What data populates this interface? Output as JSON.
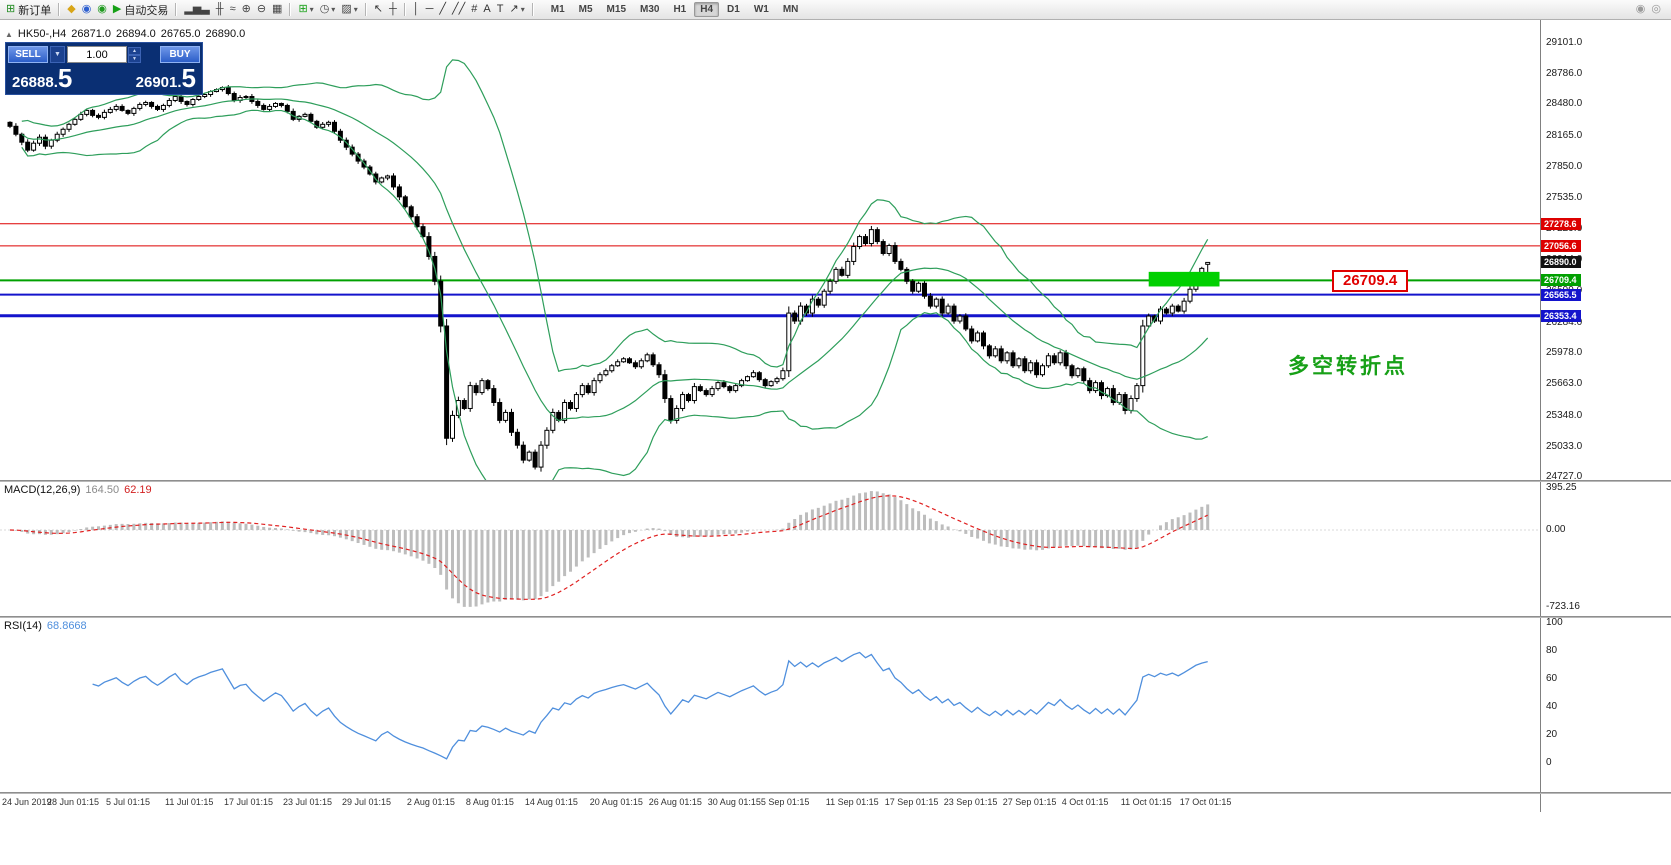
{
  "toolbar": {
    "items": [
      {
        "name": "new-order-icon",
        "glyph": "⊞",
        "color": "#1f8a1f",
        "label": "新订单"
      },
      {
        "sep": true
      },
      {
        "name": "market-watch-icon",
        "glyph": "◆",
        "color": "#d8a517"
      },
      {
        "name": "navigator-icon",
        "glyph": "◉",
        "color": "#2d5fd0"
      },
      {
        "name": "terminal-icon",
        "glyph": "◉",
        "color": "#1f9a1f"
      },
      {
        "name": "autotrading-icon",
        "glyph": "▶",
        "color": "#16a016",
        "label": "自动交易"
      },
      {
        "sep": true
      },
      {
        "name": "bar-chart-icon",
        "glyph": "▂▅▃",
        "color": "#444444"
      },
      {
        "name": "candlestick-chart-icon",
        "glyph": "╫",
        "color": "#444444"
      },
      {
        "name": "line-chart-icon",
        "glyph": "≈",
        "color": "#444444"
      },
      {
        "name": "zoom-in-icon",
        "glyph": "⊕",
        "color": "#444444"
      },
      {
        "name": "zoom-out-icon",
        "glyph": "⊖",
        "color": "#444444"
      },
      {
        "name": "tile-windows-icon",
        "glyph": "▦",
        "color": "#444444"
      },
      {
        "sep": true
      },
      {
        "name": "indicators-icon",
        "glyph": "⊞",
        "color": "#16a016",
        "caret": true
      },
      {
        "name": "periods-icon",
        "glyph": "◷",
        "color": "#444444",
        "caret": true
      },
      {
        "name": "templates-icon",
        "glyph": "▨",
        "color": "#444444",
        "caret": true
      },
      {
        "sep": true
      },
      {
        "name": "cursor-icon",
        "glyph": "↖",
        "color": "#333333"
      },
      {
        "name": "crosshair-icon",
        "glyph": "┼",
        "color": "#333333"
      },
      {
        "sep": true
      },
      {
        "name": "vertical-line-icon",
        "glyph": "│",
        "color": "#333333"
      },
      {
        "name": "horizontal-line-icon",
        "glyph": "─",
        "color": "#333333"
      },
      {
        "name": "trendline-icon",
        "glyph": "╱",
        "color": "#333333"
      },
      {
        "name": "channel-icon",
        "glyph": "╱╱",
        "color": "#333333"
      },
      {
        "name": "fibonacci-icon",
        "glyph": "#",
        "color": "#333333"
      },
      {
        "name": "text-icon",
        "glyph": "A",
        "color": "#333333"
      },
      {
        "name": "label-icon",
        "glyph": "T",
        "color": "#333333"
      },
      {
        "name": "arrows-icon",
        "glyph": "↗",
        "color": "#333333",
        "caret": true
      },
      {
        "sep": true
      }
    ],
    "timeframes": [
      "M1",
      "M5",
      "M15",
      "M30",
      "H1",
      "H4",
      "D1",
      "W1",
      "MN"
    ],
    "active_timeframe": "H4",
    "right_icons": [
      {
        "name": "community-icon",
        "glyph": "◉",
        "color": "#9a9a9a"
      },
      {
        "name": "search-icon",
        "glyph": "◎",
        "color": "#9a9a9a"
      }
    ]
  },
  "chart_info": {
    "symbol_period": "HK50-,H4",
    "open": "26871.0",
    "high": "26894.0",
    "low": "26765.0",
    "close": "26890.0"
  },
  "one_click": {
    "sell_label": "SELL",
    "buy_label": "BUY",
    "lot_size": "1.00",
    "sell_price_int": "26888.",
    "sell_price_dec": "5",
    "buy_price_int": "26901.",
    "buy_price_dec": "5"
  },
  "chart_data": {
    "type": "candlestick",
    "title": "HK50-,H4",
    "ylim": [
      24700,
      29330
    ],
    "y_ticks": [
      "29101.0",
      "28786.0",
      "28480.0",
      "28165.0",
      "27850.0",
      "27535.0",
      "27229.0",
      "26914.0",
      "26599.0",
      "26284.0",
      "25978.0",
      "25663.0",
      "25348.0",
      "25033.0",
      "24727.0"
    ],
    "current_price": {
      "value": "26890.0",
      "color": "#111111"
    },
    "levels": [
      {
        "price": "27278.6",
        "color": "#dd0000",
        "width": 1
      },
      {
        "price": "27056.6",
        "color": "#dd0000",
        "width": 1
      },
      {
        "price": "26709.4",
        "color": "#00a000",
        "width": 2
      },
      {
        "price": "26565.5",
        "color": "#1414cc",
        "width": 2
      },
      {
        "price": "26353.4",
        "color": "#1414cc",
        "width": 3
      }
    ],
    "bollinger": {
      "period": 20,
      "deviation": 2,
      "color": "#2e9e5b"
    },
    "candle_colors": {
      "up": "#ffffff",
      "down": "#000000",
      "outline": "#000000"
    },
    "candles": {
      "first_open": 28300,
      "closes": [
        28260,
        28180,
        28100,
        28020,
        28090,
        28150,
        28060,
        28120,
        28180,
        28230,
        28280,
        28330,
        28380,
        28420,
        28370,
        28350,
        28400,
        28430,
        28460,
        28420,
        28390,
        28440,
        28480,
        28500,
        28460,
        28430,
        28470,
        28520,
        28560,
        28510,
        28480,
        28530,
        28560,
        28580,
        28610,
        28630,
        28650,
        28590,
        28520,
        28550,
        28560,
        28510,
        28470,
        28430,
        28460,
        28490,
        28470,
        28410,
        28330,
        28360,
        28380,
        28310,
        28250,
        28280,
        28300,
        28210,
        28120,
        28050,
        27980,
        27910,
        27850,
        27780,
        27700,
        27740,
        27760,
        27650,
        27550,
        27450,
        27350,
        27250,
        27150,
        26950,
        26700,
        26250,
        25120,
        25350,
        25500,
        25420,
        25650,
        25580,
        25700,
        25620,
        25480,
        25300,
        25380,
        25180,
        25050,
        24900,
        24980,
        24830,
        25050,
        25200,
        25380,
        25300,
        25480,
        25420,
        25560,
        25650,
        25580,
        25700,
        25760,
        25800,
        25850,
        25890,
        25920,
        25880,
        25840,
        25900,
        25960,
        25860,
        25760,
        25520,
        25300,
        25420,
        25560,
        25500,
        25640,
        25600,
        25560,
        25620,
        25680,
        25640,
        25600,
        25650,
        25700,
        25740,
        25780,
        25710,
        25650,
        25690,
        25720,
        25800,
        26380,
        26300,
        26450,
        26380,
        26520,
        26460,
        26600,
        26700,
        26820,
        26760,
        26900,
        27050,
        27150,
        27080,
        27220,
        27100,
        26980,
        27060,
        26900,
        26820,
        26700,
        26600,
        26680,
        26550,
        26450,
        26520,
        26380,
        26450,
        26300,
        26350,
        26220,
        26100,
        26180,
        26050,
        25950,
        26020,
        25900,
        25980,
        25850,
        25920,
        25800,
        25880,
        25760,
        25850,
        25950,
        25880,
        25980,
        25850,
        25750,
        25820,
        25700,
        25600,
        25680,
        25550,
        25620,
        25480,
        25560,
        25400,
        25520,
        25650,
        26250,
        26350,
        26300,
        26420,
        26380,
        26450,
        26400,
        26500,
        26620,
        26750,
        26830,
        26890
      ],
      "last_ohlc": [
        26871.0,
        26894.0,
        26765.0,
        26890.0
      ]
    },
    "highlight_rect": {
      "from_i": 193,
      "to_i": 205,
      "price_top": 26795,
      "price_bottom": 26648,
      "color": "#00d000"
    },
    "time_axis": [
      {
        "label": "24 Jun 2019",
        "i": 1
      },
      {
        "label": "28 Jun 01:15",
        "i": 10
      },
      {
        "label": "5 Jul 01:15",
        "i": 20
      },
      {
        "label": "11 Jul 01:15",
        "i": 30
      },
      {
        "label": "17 Jul 01:15",
        "i": 40
      },
      {
        "label": "23 Jul 01:15",
        "i": 50
      },
      {
        "label": "29 Jul 01:15",
        "i": 60
      },
      {
        "label": "2 Aug 01:15",
        "i": 71
      },
      {
        "label": "8 Aug 01:15",
        "i": 81
      },
      {
        "label": "14 Aug 01:15",
        "i": 91
      },
      {
        "label": "20 Aug 01:15",
        "i": 102
      },
      {
        "label": "26 Aug 01:15",
        "i": 112
      },
      {
        "label": "30 Aug 01:15",
        "i": 122
      },
      {
        "label": "5 Sep 01:15",
        "i": 131
      },
      {
        "label": "11 Sep 01:15",
        "i": 142
      },
      {
        "label": "17 Sep 01:15",
        "i": 152
      },
      {
        "label": "23 Sep 01:15",
        "i": 162
      },
      {
        "label": "27 Sep 01:15",
        "i": 172
      },
      {
        "label": "4 Oct 01:15",
        "i": 182
      },
      {
        "label": "11 Oct 01:15",
        "i": 192
      },
      {
        "label": "17 Oct 01:15",
        "i": 202
      }
    ]
  },
  "indicators": {
    "macd": {
      "name": "MACD(12,26,9)",
      "value_main": "164.50",
      "value_signal": "62.19",
      "scale_labels": [
        "395.25",
        "0.00",
        "-723.16"
      ],
      "histogram_color": "#bdbdbd",
      "signal_color": "#e02020"
    },
    "rsi": {
      "name": "RSI(14)",
      "value": "68.8668",
      "scale_labels": [
        "100",
        "80",
        "60",
        "40",
        "20",
        "0"
      ],
      "line_color": "#4f8fdd"
    }
  },
  "annotations": {
    "price_box_text": "26709.4",
    "note_text": "多空转折点"
  }
}
